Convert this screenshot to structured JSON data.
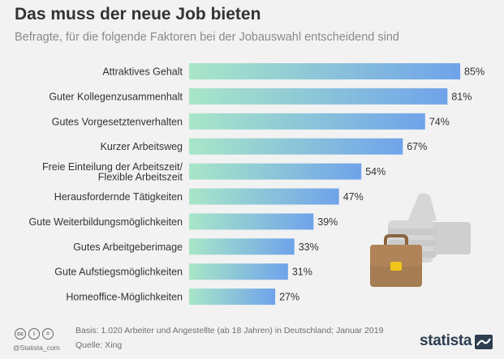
{
  "title": "Das muss der neue Job bieten",
  "subtitle": "Befragte, für die folgende Faktoren bei der Jobauswahl entscheidend sind",
  "colors": {
    "bar_start": "#a8e6c8",
    "bar_end": "#6fa3ea",
    "thumb": "#cfcfcf",
    "briefcase": "#a67c52",
    "briefcase_dark": "#8a6541",
    "clasp": "#f0c419"
  },
  "chart_data": {
    "type": "bar",
    "orientation": "horizontal",
    "categories": [
      [
        "Attraktives Gehalt"
      ],
      [
        "Guter Kollegenzusammenhalt"
      ],
      [
        "Gutes Vorgesetztenverhalten"
      ],
      [
        "Kurzer Arbeitsweg"
      ],
      [
        "Freie Einteilung der Arbeitszeit/",
        "Flexible Arbeitszeit"
      ],
      [
        "Herausfordernde Tätigkeiten"
      ],
      [
        "Gute Weiterbildungsmöglichkeiten"
      ],
      [
        "Gutes Arbeitgeberimage"
      ],
      [
        "Gute Aufstiegsmöglichkeiten"
      ],
      [
        "Homeoffice-Möglichkeiten"
      ]
    ],
    "values": [
      85,
      81,
      74,
      67,
      54,
      47,
      39,
      33,
      31,
      27
    ],
    "value_suffix": "%",
    "xlim": [
      0,
      100
    ],
    "grid": false,
    "legend": "none"
  },
  "footer": {
    "basis": "Basis: 1.020 Arbeiter und Angestellte (ab 18 Jahren) in Deutschland; Januar 2019",
    "source": "Quelle: Xing",
    "handle": "@Statista_com",
    "brand": "statista",
    "cc_icons": [
      "cc",
      "i",
      "="
    ]
  }
}
